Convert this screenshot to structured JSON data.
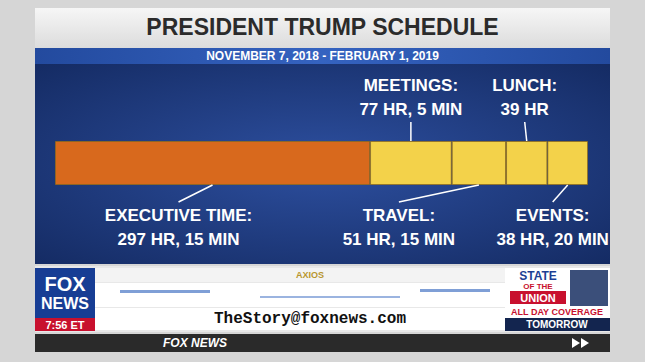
{
  "chart_data": {
    "type": "bar",
    "orientation": "horizontal",
    "stacked": true,
    "data_labels": true,
    "tick_labels": false,
    "grid": false,
    "title": "PRESIDENT TRUMP SCHEDULE",
    "subtitle": "NOVEMBER 7, 2018 - FEBRUARY 1, 2019",
    "categories": [
      null
    ],
    "xlim": [
      0,
      502.91
    ],
    "xticks": [],
    "series": [
      {
        "name": "EXECUTIVE TIME:",
        "color": "#d8691d",
        "values": [
          297.25
        ],
        "value_labels": [
          "297 HR, 15 MIN"
        ]
      },
      {
        "name": "MEETINGS:",
        "color": "#f3d24a",
        "values": [
          77.08
        ],
        "value_labels": [
          "77 HR, 5 MIN"
        ]
      },
      {
        "name": "TRAVEL:",
        "color": "#f3d24a",
        "values": [
          51.25
        ],
        "value_labels": [
          "51 HR, 15 MIN"
        ]
      },
      {
        "name": "LUNCH:",
        "color": "#f3d24a",
        "values": [
          39
        ],
        "value_labels": [
          "39 HR"
        ]
      },
      {
        "name": "EVENTS:",
        "color": "#f3d24a",
        "values": [
          38.33
        ],
        "value_labels": [
          "38 HR, 20 MIN"
        ]
      }
    ]
  },
  "screen": {
    "source": "AXIOS",
    "network": "FOX NEWS",
    "time": "7:56 ET",
    "email": "TheStory@foxnews.com",
    "promo": {
      "lines": [
        "STATE",
        "OF THE",
        "UNION"
      ],
      "coverage": "ALL DAY COVERAGE",
      "when": "TOMORROW"
    },
    "footer": "FOX NEWS"
  }
}
